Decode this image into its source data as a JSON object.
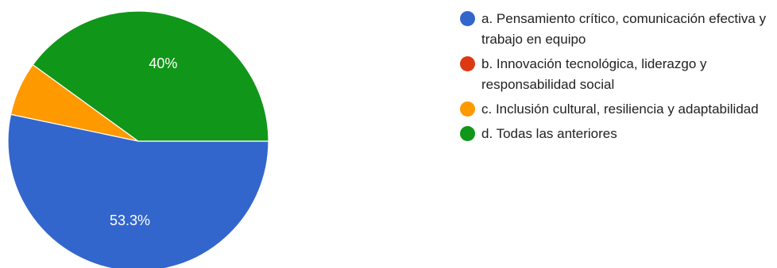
{
  "chart_data": {
    "type": "pie",
    "categories": [
      "a. Pensamiento crítico, comunicación efectiva y trabajo en equipo",
      "b. Innovación tecnológica, liderazgo y responsabilidad social",
      "c. Inclusión cultural, resiliencia y adaptabilidad",
      "d. Todas las anteriores"
    ],
    "values": [
      53.3,
      0,
      6.7,
      40
    ],
    "data_labels": [
      "53.3%",
      "",
      "",
      "40%"
    ],
    "colors": [
      "#3366cc",
      "#dc3912",
      "#ff9900",
      "#109618"
    ],
    "legend_position": "right"
  }
}
